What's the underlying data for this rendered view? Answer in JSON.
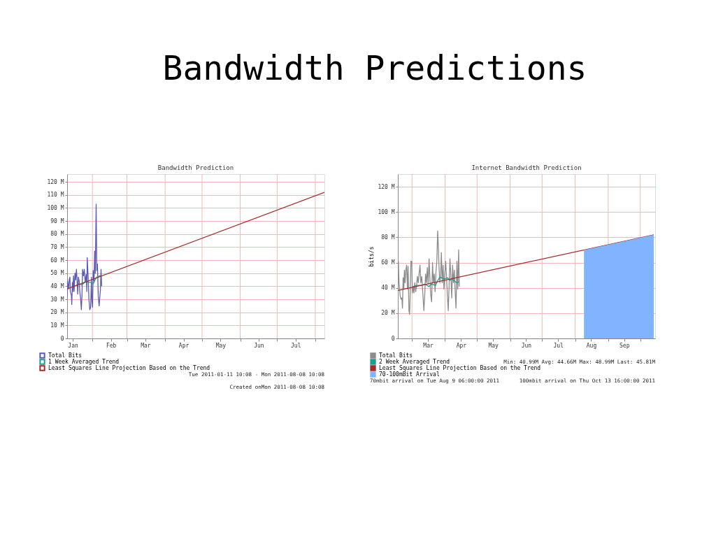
{
  "chart_data": [
    {
      "type": "line",
      "title": "Bandwidth Prediction",
      "annotations": [
        "Bandwidth Predictions",
        "Tue 2011-01-11 10:08 - Mon 2011-08-08 10:08",
        "Created onMon 2011-08-08 10:08"
      ],
      "xlim": [
        "2011-01-11T10:00",
        "2011-08-08T10:00"
      ],
      "xticks": [
        {
          "value": "2011-01-16",
          "label": "Jan"
        },
        {
          "value": "2011-02-01",
          "label": null
        },
        {
          "value": "2011-02-16",
          "label": "Feb"
        },
        {
          "value": "2011-03-01",
          "label": null
        },
        {
          "value": "2011-03-16",
          "label": "Mar"
        },
        {
          "value": "2011-04-01",
          "label": null
        },
        {
          "value": "2011-04-16",
          "label": "Apr"
        },
        {
          "value": "2011-05-01",
          "label": null
        },
        {
          "value": "2011-05-16",
          "label": "May"
        },
        {
          "value": "2011-06-01",
          "label": null
        },
        {
          "value": "2011-06-16",
          "label": "Jun"
        },
        {
          "value": "2011-07-01",
          "label": null
        },
        {
          "value": "2011-07-16",
          "label": "Jul"
        },
        {
          "value": "2011-08-01",
          "label": null
        }
      ],
      "ylim": [
        0,
        126
      ],
      "yticks": [
        0,
        {
          "value": 10,
          "label": "10 M"
        },
        {
          "value": 20,
          "label": "20 M"
        },
        {
          "value": 30,
          "label": "30 M"
        },
        {
          "value": 40,
          "label": "40 M"
        },
        {
          "value": 50,
          "label": "50 M"
        },
        {
          "value": 60,
          "label": "60 M"
        },
        {
          "value": 70,
          "label": "70 M"
        },
        {
          "value": 80,
          "label": "80 M"
        },
        {
          "value": 90,
          "label": "90 M"
        },
        {
          "value": 100,
          "label": "100 M"
        },
        {
          "value": 110,
          "label": "110 M"
        },
        {
          "value": 120,
          "label": "120 M"
        }
      ],
      "grid": true,
      "legend": "bottom left",
      "marker": "none",
      "line_style": "solid",
      "series": [
        {
          "name": "Total Bits",
          "color": "#5b5bb5",
          "x": [
            "2011-01-11T10:00",
            "2011-01-11T18:00",
            "2011-01-12T15:00",
            "2011-01-13T03:00",
            "2011-01-13T16:00",
            "2011-01-14T00:00",
            "2011-01-14T21:00",
            "2011-01-15T05:00",
            "2011-01-15T17:00",
            "2011-01-16T02:00",
            "2011-01-16T14:00",
            "2011-01-17T02:00",
            "2011-01-17T19:00",
            "2011-01-18T07:00",
            "2011-01-19T00:00",
            "2011-01-19T12:00",
            "2011-01-20T00:00",
            "2011-01-20T13:00",
            "2011-01-21T05:00",
            "2011-01-21T18:00",
            "2011-01-22T06:00",
            "2011-01-22T23:00",
            "2011-01-23T11:00",
            "2011-01-23T23:00",
            "2011-01-24T16:00",
            "2011-01-25T09:00",
            "2011-01-26T01:00",
            "2011-01-26T22:00",
            "2011-01-27T10:00",
            "2011-01-27T18:00",
            "2011-01-28T11:00",
            "2011-01-29T03:00",
            "2011-01-29T20:00",
            "2011-01-30T12:00",
            "2011-01-31T05:00",
            "2011-01-31T13:00",
            "2011-02-01T02:00",
            "2011-02-01T14:00",
            "2011-02-02T07:00",
            "2011-02-02T19:00",
            "2011-02-03T07:00",
            "2011-02-04T00:00",
            "2011-02-04T12:00",
            "2011-02-05T01:00",
            "2011-02-05T17:00",
            "2011-02-06T10:00",
            "2011-02-06T22:00",
            "2011-02-07T10:00",
            "2011-02-07T23:00",
            "2011-02-08T11:00"
          ],
          "values": [
            32,
            44,
            38,
            45,
            47,
            36,
            33,
            26,
            43,
            36,
            48,
            36,
            50,
            45,
            53,
            44,
            34,
            47,
            44,
            35,
            32,
            22,
            32,
            53,
            48,
            53,
            43,
            49,
            36,
            62,
            48,
            30,
            22,
            24,
            47,
            29,
            24,
            52,
            44,
            67,
            50,
            103,
            52,
            57,
            32,
            25,
            31,
            37,
            53,
            40
          ]
        },
        {
          "name": "1 Week Averaged Trend",
          "color": "#1e9c8c",
          "x": [
            "2011-01-19T00:00",
            "2011-01-21T05:00",
            "2011-01-22T23:00",
            "2011-01-24T16:00",
            "2011-01-26T09:00",
            "2011-01-29T00:00",
            "2011-01-30T16:00",
            "2011-02-01T10:00",
            "2011-02-02T07:00",
            "2011-02-03T03:00",
            "2011-02-04T12:00",
            "2011-02-06T14:00",
            "2011-02-08T11:00"
          ],
          "values": [
            41,
            42,
            41,
            42,
            44,
            43,
            43,
            42,
            43,
            45,
            47,
            48,
            48
          ]
        },
        {
          "name": "Least Squares Line Projection Based on the Trend",
          "color": "#a52a2a",
          "x": [
            "2011-01-11T10:00",
            "2011-08-08T10:00"
          ],
          "values": [
            38,
            112
          ]
        }
      ]
    },
    {
      "type": "line",
      "title": "Internet Bandwidth Prediction",
      "ylabel": "bits/s",
      "annotations": [
        "Min:    40.99M  Avg:    44.66M  Max:    48.99M  Last:    45.81M",
        "70mbit arrival on Tue Aug  9 06:00:00 2011",
        "100mbit arrival on Thu Oct 13 16:00:00 2011"
      ],
      "xlim": [
        "2011-02-15T18:00",
        "2011-10-15"
      ],
      "xticks": [
        {
          "value": "2011-03-01",
          "label": null
        },
        {
          "value": "2011-03-16",
          "label": "Mar"
        },
        {
          "value": "2011-04-01",
          "label": null
        },
        {
          "value": "2011-04-16",
          "label": "Apr"
        },
        {
          "value": "2011-05-01",
          "label": null
        },
        {
          "value": "2011-05-16",
          "label": "May"
        },
        {
          "value": "2011-06-01",
          "label": null
        },
        {
          "value": "2011-06-16",
          "label": "Jun"
        },
        {
          "value": "2011-07-01",
          "label": null
        },
        {
          "value": "2011-07-16",
          "label": "Jul"
        },
        {
          "value": "2011-08-01",
          "label": null
        },
        {
          "value": "2011-08-16",
          "label": "Aug"
        },
        {
          "value": "2011-09-01",
          "label": null
        },
        {
          "value": "2011-09-16",
          "label": "Sep"
        },
        {
          "value": "2011-10-01",
          "label": null
        }
      ],
      "ylim": [
        0,
        130
      ],
      "yticks": [
        0,
        {
          "value": 20,
          "label": "20 M"
        },
        {
          "value": 40,
          "label": "40 M"
        },
        {
          "value": 60,
          "label": "60 M"
        },
        {
          "value": 80,
          "label": "80 M"
        },
        {
          "value": 100,
          "label": "100 M"
        },
        {
          "value": 120,
          "label": "120 M"
        }
      ],
      "grid": true,
      "legend": "bottom left",
      "marker": "none",
      "line_style": "solid",
      "series": [
        {
          "name": "Total Bits",
          "color": "#8c8c8c",
          "x": [
            "2011-02-15T20:00",
            "2011-02-16T06:00",
            "2011-02-16T20:00",
            "2011-02-17T21:00",
            "2011-02-18T16:00",
            "2011-02-19T12:00",
            "2011-02-20T02:00",
            "2011-02-20T17:00",
            "2011-02-21T07:00",
            "2011-02-21T22:00",
            "2011-02-22T12:00",
            "2011-02-23T03:00",
            "2011-02-23T23:00",
            "2011-02-24T18:00",
            "2011-02-25T08:00",
            "2011-02-26T04:00",
            "2011-02-26T18:00",
            "2011-02-27T09:00",
            "2011-02-28T00:00",
            "2011-02-28T19:00",
            "2011-03-01T10:00",
            "2011-03-02T05:00",
            "2011-03-02T20:00",
            "2011-03-03T15:00",
            "2011-03-04T11:00",
            "2011-03-05T06:00",
            "2011-03-06T01:00",
            "2011-03-06T21:00",
            "2011-03-07T16:00",
            "2011-03-08T12:00",
            "2011-03-09T07:00",
            "2011-03-10T03:00",
            "2011-03-10T22:00",
            "2011-03-12T03:00",
            "2011-03-12T23:00",
            "2011-03-13T18:00",
            "2011-03-14T14:00",
            "2011-03-15T09:00",
            "2011-03-16T05:00",
            "2011-03-17T00:00",
            "2011-03-17T19:00",
            "2011-03-18T15:00",
            "2011-03-19T10:00",
            "2011-03-20T06:00",
            "2011-03-21T01:00",
            "2011-03-21T21:00",
            "2011-03-22T16:00",
            "2011-03-23T12:00",
            "2011-03-24T07:00",
            "2011-03-25T02:00",
            "2011-03-25T17:00",
            "2011-03-26T07:00",
            "2011-03-27T03:00",
            "2011-03-27T22:00",
            "2011-03-28T13:00",
            "2011-03-29T08:00",
            "2011-03-30T04:00",
            "2011-03-30T23:00",
            "2011-03-31T19:00",
            "2011-04-01T14:00",
            "2011-04-02T10:00",
            "2011-04-03T05:00",
            "2011-04-04T00:00",
            "2011-04-04T20:00",
            "2011-04-05T15:00",
            "2011-04-06T11:00",
            "2011-04-07T06:00",
            "2011-04-08T02:00",
            "2011-04-08T21:00",
            "2011-04-09T17:00",
            "2011-04-10T12:00",
            "2011-04-11T07:00",
            "2011-04-12T03:00",
            "2011-04-12T22:00",
            "2011-04-13T18:00",
            "2011-04-14T08:00"
          ],
          "values": [
            58,
            61,
            44,
            34,
            31,
            32,
            24,
            48,
            39,
            54,
            44,
            53,
            58,
            39,
            57,
            22,
            19,
            37,
            61,
            61,
            36,
            41,
            36,
            44,
            37,
            41,
            49,
            44,
            51,
            58,
            44,
            49,
            39,
            22,
            34,
            51,
            44,
            56,
            43,
            63,
            48,
            34,
            29,
            60,
            44,
            51,
            37,
            53,
            61,
            85,
            73,
            58,
            44,
            51,
            68,
            44,
            58,
            39,
            51,
            61,
            48,
            34,
            22,
            43,
            63,
            49,
            32,
            58,
            44,
            54,
            37,
            24,
            61,
            39,
            70,
            41
          ]
        },
        {
          "name": "2 Week Averaged Trend",
          "color": "#1e9c8c",
          "x": [
            "2011-03-01T19:00",
            "2011-03-05T21:00",
            "2011-03-09T22:00",
            "2011-03-12T23:00",
            "2011-03-17T00:00",
            "2011-03-19T10:00",
            "2011-03-23T02:00",
            "2011-03-24T17:00",
            "2011-03-26T17:00",
            "2011-03-28T18:00",
            "2011-03-31T04:00",
            "2011-04-03T05:00",
            "2011-04-05T06:00",
            "2011-04-07T16:00",
            "2011-04-10T07:00",
            "2011-04-12T08:00",
            "2011-04-13T23:00"
          ],
          "values": [
            41,
            42,
            42,
            43,
            41,
            43,
            42,
            45,
            48,
            48,
            47,
            48,
            46,
            47,
            45,
            44,
            45
          ]
        },
        {
          "name": "Least Squares Line Projection Based on the Trend",
          "color": "#a52a2a",
          "x": [
            "2011-02-15T18:00",
            "2011-10-13T16:00"
          ],
          "values": [
            38,
            82
          ]
        },
        {
          "name": "70-100mBit Arrival",
          "type": "area",
          "color": "#80b4ff",
          "x": [
            "2011-08-09T06:00",
            "2011-10-13T16:00"
          ],
          "values": [
            70,
            82
          ]
        }
      ]
    }
  ]
}
